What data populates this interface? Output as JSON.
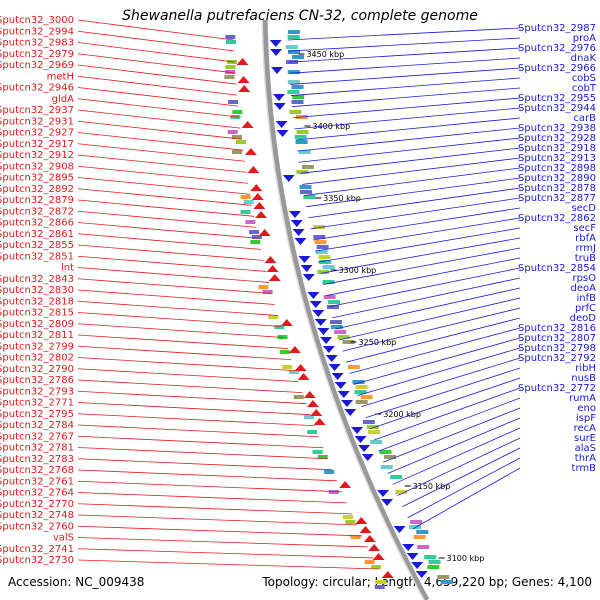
{
  "title": "Shewanella putrefaciens CN-32, complete genome",
  "accession": "Accession: NC_009438",
  "summary": "Topology: circular; Length: 4,659,220 bp; Genes: 4,100",
  "colors": {
    "left_strand": "#e31a1c",
    "right_strand": "#1a1ad6",
    "backbone": "#999999"
  },
  "kbp_markers": [
    "3450 kbp",
    "3400 kbp",
    "3350 kbp",
    "3300 kbp",
    "3250 kbp",
    "3200 kbp",
    "3150 kbp",
    "3100 kbp"
  ],
  "left_labels": [
    "Sputcn32_3000",
    "Sputcn32_2994",
    "Sputcn32_2983",
    "Sputcn32_2979",
    "Sputcn32_2969",
    "metH",
    "Sputcn32_2946",
    "gldA",
    "Sputcn32_2937",
    "Sputcn32_2931",
    "Sputcn32_2927",
    "Sputcn32_2917",
    "Sputcn32_2912",
    "Sputcn32_2908",
    "Sputcn32_2895",
    "Sputcn32_2892",
    "Sputcn32_2879",
    "Sputcn32_2872",
    "Sputcn32_2866",
    "Sputcn32_2861",
    "Sputcn32_2855",
    "Sputcn32_2851",
    "lnt",
    "Sputcn32_2843",
    "Sputcn32_2830",
    "Sputcn32_2818",
    "Sputcn32_2815",
    "Sputcn32_2809",
    "Sputcn32_2811",
    "Sputcn32_2799",
    "Sputcn32_2802",
    "Sputcn32_2790",
    "Sputcn32_2786",
    "Sputcn32_2793",
    "Sputcn32_2771",
    "Sputcn32_2795",
    "Sputcn32_2784",
    "Sputcn32_2767",
    "Sputcn32_2781",
    "Sputcn32_2783",
    "Sputcn32_2768",
    "Sputcn32_2761",
    "Sputcn32_2764",
    "Sputcn32_2770",
    "Sputcn32_2748",
    "Sputcn32_2760",
    "valS",
    "Sputcn32_2741",
    "Sputcn32_2730"
  ],
  "right_labels": [
    "Sputcn32_2987",
    "proA",
    "Sputcn32_2976",
    "dnaK",
    "Sputcn32_2966",
    "cobS",
    "cobT",
    "Sputcn32_2955",
    "Sputcn32_2944",
    "carB",
    "Sputcn32_2938",
    "Sputcn32_2928",
    "Sputcn32_2918",
    "Sputcn32_2913",
    "Sputcn32_2898",
    "Sputcn32_2890",
    "Sputcn32_2878",
    "Sputcn32_2877",
    "secD",
    "Sputcn32_2862",
    "secF",
    "rbfA",
    "rrmJ",
    "truB",
    "Sputcn32_2854",
    "rpsO",
    "deoA",
    "infB",
    "prfC",
    "deoD",
    "Sputcn32_2816",
    "Sputcn32_2807",
    "Sputcn32_2798",
    "Sputcn32_2792",
    "ribH",
    "nusB",
    "Sputcn32_2772",
    "rumA",
    "eno",
    "ispF",
    "recA",
    "surE",
    "alaS",
    "thrA",
    "trmB"
  ]
}
